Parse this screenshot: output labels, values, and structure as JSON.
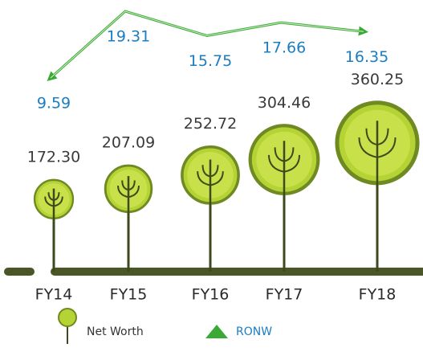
{
  "chart_data": {
    "type": "tree-infographic",
    "categories": [
      "FY14",
      "FY15",
      "FY16",
      "FY17",
      "FY18"
    ],
    "ground_color": "#4b5627",
    "series": [
      {
        "name": "Net Worth",
        "color": "#b5d334",
        "values": [
          172.3,
          207.09,
          252.72,
          304.46,
          360.25
        ],
        "value_labels": [
          "172.30",
          "207.09",
          "252.72",
          "304.46",
          "360.25"
        ]
      },
      {
        "name": "RONW",
        "color": "#3aaa35",
        "label_color": "#1b7dc2",
        "values": [
          9.59,
          19.31,
          15.75,
          17.66,
          16.35
        ]
      }
    ]
  }
}
